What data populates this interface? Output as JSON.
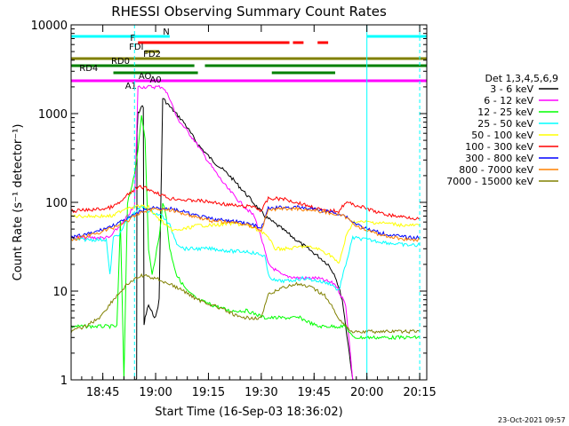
{
  "chart_data": {
    "type": "line",
    "title": "RHESSI Observing Summary Count Rates",
    "xlabel": "Start Time (16-Sep-03 18:36:02)",
    "ylabel": "Count Rate (s⁻¹ detector⁻¹)",
    "yscale": "log",
    "ylim": [
      1,
      10000
    ],
    "xlim_minutes": [
      0,
      101
    ],
    "x_ticks": [
      {
        "t": 9,
        "label": "18:45"
      },
      {
        "t": 24,
        "label": "19:00"
      },
      {
        "t": 39,
        "label": "19:15"
      },
      {
        "t": 54,
        "label": "19:30"
      },
      {
        "t": 69,
        "label": "19:45"
      },
      {
        "t": 84,
        "label": "20:00"
      },
      {
        "t": 99,
        "label": "20:15"
      }
    ],
    "y_ticks": [
      {
        "v": 1,
        "label": "1"
      },
      {
        "v": 10,
        "label": "10"
      },
      {
        "v": 100,
        "label": "100"
      },
      {
        "v": 1000,
        "label": "1000"
      },
      {
        "v": 10000,
        "label": "10000"
      }
    ],
    "legend_header": "Det 1,3,4,5,6,9",
    "legend_position": "right",
    "series": [
      {
        "name": "3 - 6 keV",
        "color": "#000000",
        "x": [
          18,
          18.6,
          18.7,
          19,
          20,
          20.5,
          20.7,
          21,
          22,
          22.6,
          24,
          25,
          26,
          28,
          32,
          36,
          40,
          45,
          50,
          55,
          60,
          65,
          70,
          73,
          75,
          77,
          80
        ],
        "y": [
          1,
          1,
          600,
          1000,
          1200,
          1200,
          4,
          5,
          7,
          6,
          5,
          8,
          1500,
          1200,
          800,
          450,
          300,
          200,
          120,
          70,
          50,
          35,
          25,
          20,
          15,
          8,
          1
        ]
      },
      {
        "name": "6 - 12 keV",
        "color": "#ff00ff",
        "x": [
          0,
          11,
          12,
          13,
          15,
          16,
          18,
          19,
          20,
          21,
          23,
          24,
          25,
          26,
          28,
          30,
          35,
          40,
          44,
          48,
          52,
          54,
          56,
          60,
          65,
          70,
          75,
          78,
          80
        ],
        "y": [
          40,
          40,
          45,
          50,
          60,
          70,
          90,
          2000,
          2000,
          2000,
          2000,
          2000,
          2000,
          2000,
          1500,
          900,
          500,
          250,
          150,
          100,
          70,
          40,
          20,
          15,
          14,
          14,
          12,
          7,
          1
        ]
      },
      {
        "name": "12 - 25 keV",
        "color": "#00ff00",
        "x": [
          0,
          5,
          10,
          12,
          13,
          14,
          15,
          16,
          18,
          19,
          20,
          21,
          22,
          23,
          24,
          25,
          26,
          27,
          28,
          30,
          33,
          36,
          40,
          45,
          50,
          55,
          60,
          65,
          70,
          75,
          78,
          80,
          85,
          95,
          99
        ],
        "y": [
          4,
          4,
          4,
          4,
          4,
          60,
          1,
          100,
          200,
          400,
          1000,
          500,
          30,
          15,
          25,
          40,
          100,
          70,
          30,
          15,
          10,
          8,
          7,
          6,
          6,
          5,
          5,
          5,
          4,
          4,
          4,
          3,
          3,
          3,
          3
        ]
      },
      {
        "name": "25 - 50 keV",
        "color": "#00ffff",
        "x": [
          0,
          10,
          11,
          12,
          14,
          16,
          18,
          20,
          22,
          24,
          26,
          28,
          30,
          32,
          36,
          40,
          46,
          50,
          55,
          56,
          58,
          62,
          66,
          70,
          74,
          76,
          78,
          80,
          84,
          90,
          95,
          99
        ],
        "y": [
          38,
          38,
          15,
          40,
          45,
          65,
          75,
          90,
          80,
          75,
          70,
          55,
          35,
          30,
          30,
          30,
          28,
          28,
          25,
          15,
          13,
          13,
          14,
          13,
          12,
          10,
          20,
          40,
          38,
          35,
          33,
          33
        ]
      },
      {
        "name": "50 - 100 keV",
        "color": "#ffff00",
        "x": [
          0,
          10,
          12,
          14,
          16,
          18,
          20,
          22,
          24,
          26,
          28,
          30,
          32,
          36,
          40,
          46,
          50,
          55,
          58,
          62,
          66,
          70,
          74,
          76,
          78,
          80,
          84,
          90,
          95,
          99
        ],
        "y": [
          70,
          70,
          70,
          80,
          88,
          90,
          90,
          88,
          70,
          60,
          50,
          48,
          50,
          55,
          55,
          58,
          55,
          45,
          30,
          30,
          32,
          30,
          25,
          20,
          40,
          60,
          60,
          58,
          55,
          55
        ]
      },
      {
        "name": "100 - 300 keV",
        "color": "#ff0000",
        "x": [
          0,
          5,
          10,
          12,
          14,
          16,
          18,
          20,
          22,
          24,
          26,
          28,
          30,
          33,
          36,
          40,
          44,
          48,
          52,
          54,
          56,
          60,
          64,
          68,
          72,
          74,
          76,
          78,
          80,
          84,
          88,
          92,
          96,
          99
        ],
        "y": [
          80,
          82,
          85,
          90,
          100,
          120,
          140,
          150,
          140,
          130,
          120,
          110,
          110,
          105,
          105,
          100,
          95,
          90,
          90,
          80,
          110,
          110,
          100,
          90,
          80,
          80,
          80,
          100,
          95,
          85,
          75,
          70,
          68,
          65
        ]
      },
      {
        "name": "300 - 800 keV",
        "color": "#0000ff",
        "x": [
          0,
          6,
          12,
          16,
          20,
          24,
          28,
          32,
          36,
          40,
          44,
          48,
          52,
          54,
          56,
          60,
          64,
          68,
          72,
          76,
          78,
          80,
          84,
          88,
          92,
          96,
          99
        ],
        "y": [
          40,
          45,
          55,
          65,
          80,
          88,
          85,
          78,
          70,
          65,
          62,
          60,
          55,
          50,
          85,
          88,
          88,
          85,
          80,
          75,
          70,
          60,
          50,
          45,
          42,
          40,
          40
        ]
      },
      {
        "name": "800 - 7000 keV",
        "color": "#ff8000",
        "x": [
          0,
          6,
          12,
          16,
          20,
          24,
          28,
          32,
          36,
          40,
          44,
          48,
          52,
          54,
          56,
          60,
          64,
          68,
          72,
          76,
          78,
          80,
          84,
          88,
          92,
          96,
          99
        ],
        "y": [
          38,
          43,
          52,
          62,
          78,
          85,
          82,
          75,
          68,
          62,
          60,
          58,
          53,
          48,
          82,
          85,
          85,
          82,
          78,
          72,
          68,
          58,
          48,
          43,
          40,
          38,
          38
        ]
      },
      {
        "name": "7000 - 15000 keV",
        "color": "#808000",
        "x": [
          0,
          4,
          8,
          12,
          16,
          20,
          24,
          28,
          32,
          36,
          40,
          44,
          48,
          52,
          54,
          56,
          60,
          64,
          68,
          72,
          76,
          78,
          80,
          84,
          90,
          95,
          99
        ],
        "y": [
          3.5,
          4,
          5,
          8,
          12,
          15,
          14,
          12,
          10,
          8,
          7,
          6,
          5,
          5,
          5,
          9,
          11,
          12,
          11,
          9,
          5,
          4,
          3.5,
          3.5,
          3.5,
          3.5,
          3.5
        ]
      }
    ],
    "state_bars": [
      {
        "label": "N",
        "color": "#00ffff",
        "segments": [
          [
            -1,
            28
          ],
          [
            84,
            101
          ]
        ]
      },
      {
        "label": "F",
        "color": "#ff0000",
        "segments": [
          [
            19,
            62
          ],
          [
            63,
            66
          ],
          [
            70,
            73
          ]
        ]
      },
      {
        "label": "FDI",
        "color": "#808000",
        "segments": [
          [
            21,
            25
          ]
        ]
      },
      {
        "label": "FD2",
        "color": "#808000",
        "segments": [
          [
            -1,
            101
          ]
        ]
      },
      {
        "label": "RD0",
        "color": "#008000",
        "segments": [
          [
            -1,
            35
          ],
          [
            38,
            101
          ]
        ]
      },
      {
        "label": "RD4",
        "color": "#008000",
        "segments": [
          [
            12,
            36
          ],
          [
            57,
            75
          ]
        ]
      },
      {
        "label": "AO",
        "color": "#ff00ff",
        "segments": [
          [
            -1,
            101
          ]
        ]
      }
    ],
    "marker_labels": [
      "A1",
      "A0"
    ],
    "vertical_lines": [
      {
        "t": 18,
        "color": "#00ffff",
        "style": "dashed"
      },
      {
        "t": 84,
        "color": "#00ffff",
        "style": "solid"
      },
      {
        "t": 99,
        "color": "#00ffff",
        "style": "dashed"
      }
    ]
  },
  "footer": {
    "timestamp": "23-Oct-2021 09:57"
  }
}
